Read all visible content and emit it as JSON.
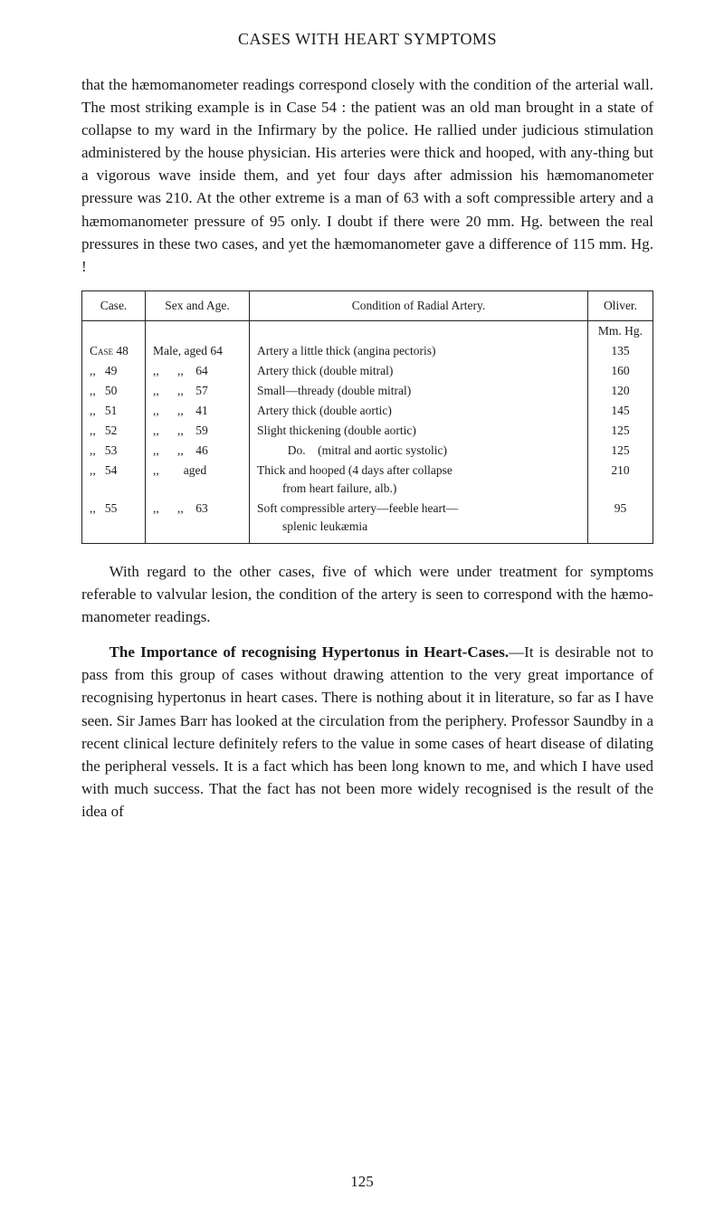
{
  "header": "CASES WITH HEART SYMPTOMS",
  "para1": "that the hæmomanometer readings correspond closely with the condition of the arterial wall. The most striking example is in Case 54 : the patient was an old man brought in a state of collapse to my ward in the Infirmary by the police. He rallied under judicious stimulation administered by the house physician. His arteries were thick and hooped, with any-thing but a vigorous wave inside them, and yet four days after admission his hæmomanometer pressure was 210. At the other extreme is a man of 63 with a soft compressible artery and a hæmomanometer pressure of 95 only. I doubt if there were 20 mm. Hg. between the real pressures in these two cases, and yet the hæmomanometer gave a difference of 115 mm. Hg. !",
  "table": {
    "head": {
      "c1": "Case.",
      "c2": "Sex and Age.",
      "c3": "Condition of Radial Artery.",
      "c4": "Oliver."
    },
    "unit_row": "Mm. Hg.",
    "rows": [
      {
        "case": "Case 48",
        "case_sc": true,
        "sex": "Male, aged 64",
        "cond": "Artery a little thick (angina pectoris)",
        "cond_sub": "",
        "oliv": "135"
      },
      {
        "case": ",,   49",
        "sex": ",,      ,,    64",
        "cond": "Artery thick (double mitral)",
        "cond_sub": "",
        "oliv": "160"
      },
      {
        "case": ",,   50",
        "sex": ",,      ,,    57",
        "cond": "Small—thready (double mitral)",
        "cond_sub": "",
        "oliv": "120"
      },
      {
        "case": ",,   51",
        "sex": ",,      ,,    41",
        "cond": "Artery thick (double aortic)",
        "cond_sub": "",
        "oliv": "145"
      },
      {
        "case": ",,   52",
        "sex": ",,      ,,    59",
        "cond": "Slight thickening (double aortic)",
        "cond_sub": "",
        "oliv": "125"
      },
      {
        "case": ",,   53",
        "sex": ",,      ,,    46",
        "cond": "          Do.    (mitral and aortic systolic)",
        "cond_sub": "",
        "oliv": "125"
      },
      {
        "case": ",,   54",
        "sex": ",,        aged",
        "cond": "Thick and hooped (4 days after collapse",
        "cond_sub": "from heart failure, alb.)",
        "oliv": "210"
      },
      {
        "case": ",,   55",
        "sex": ",,      ,,    63",
        "cond": "Soft compressible artery—feeble heart—",
        "cond_sub": "splenic leukæmia",
        "oliv": "95"
      }
    ]
  },
  "para2": "With regard to the other cases, five of which were under treatment for symptoms referable to valvular lesion, the condition of the artery is seen to correspond with the hæmo-manometer readings.",
  "para3_bold": "The Importance of recognising Hypertonus in Heart-Cases.",
  "para3_rest": "—It is desirable not to pass from this group of cases without drawing attention to the very great importance of recognising hypertonus in heart cases. There is nothing about it in literature, so far as I have seen. Sir James Barr has looked at the circulation from the periphery. Professor Saundby in a recent clinical lecture definitely refers to the value in some cases of heart disease of dilating the peripheral vessels. It is a fact which has been long known to me, and which I have used with much success. That the fact has not been more widely recognised is the result of the idea of",
  "page_number": "125"
}
